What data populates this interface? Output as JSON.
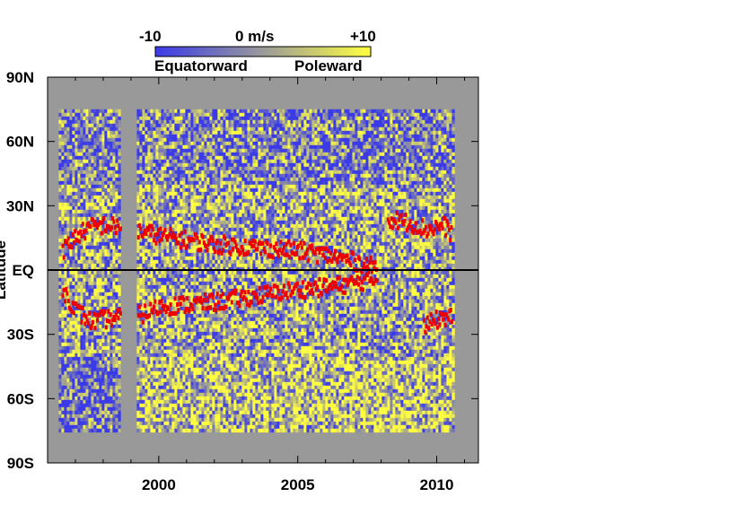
{
  "chart_data": {
    "type": "heatmap",
    "title": "",
    "ylabel": "Latitude",
    "xlabel": "",
    "x_ticks": [
      "2000",
      "2005",
      "2010"
    ],
    "x_tick_values": [
      2000,
      2005,
      2010
    ],
    "xlim": [
      1996,
      2011.5
    ],
    "y_ticks": [
      "90N",
      "60N",
      "30N",
      "EQ",
      "30S",
      "60S",
      "90S"
    ],
    "y_tick_values": [
      90,
      60,
      30,
      0,
      -30,
      -60,
      -90
    ],
    "ylim": [
      -90,
      90
    ],
    "data_lat_range": [
      -75,
      75
    ],
    "colorbar": {
      "min_label": "-10",
      "mid_label": "0 m/s",
      "max_label": "+10",
      "low_text": "Equatorward",
      "high_text": "Poleward",
      "range": [
        -10,
        10
      ],
      "colors": [
        "#3a3ae8",
        "#9a9a9a",
        "#ffff40"
      ]
    },
    "no_data_color": "#999999",
    "data_gaps_years": [
      [
        1998.6,
        1999.2
      ]
    ],
    "data_year_range": [
      1996.4,
      2010.6
    ],
    "equator_line": true,
    "red_tracks": {
      "color": "#ee0000",
      "north": {
        "years": [
          1996.5,
          1997.0,
          1997.5,
          1998.0,
          1998.5,
          1999.3,
          2000.0,
          2001.0,
          2002.0,
          2003.0,
          2004.0,
          2005.0,
          2006.0,
          2007.0,
          2007.8
        ],
        "lat": [
          10,
          17,
          21,
          22,
          21,
          19,
          17,
          15,
          13,
          12,
          11,
          10,
          8,
          5,
          2
        ]
      },
      "north_late": {
        "years": [
          2008.2,
          2009.0,
          2009.6,
          2010.2,
          2010.5
        ],
        "lat": [
          25,
          23,
          20,
          22,
          18
        ]
      },
      "south": {
        "years": [
          1996.5,
          1997.0,
          1997.5,
          1998.0,
          1998.5,
          1999.3,
          2000.0,
          2001.0,
          2002.0,
          2003.0,
          2004.0,
          2005.0,
          2006.0,
          2007.0,
          2007.8
        ],
        "lat": [
          -8,
          -18,
          -23,
          -22,
          -21,
          -20,
          -16,
          -15,
          -14,
          -12,
          -10,
          -8,
          -7,
          -5,
          -3
        ]
      },
      "south_late": {
        "years": [
          2009.5,
          2010.0,
          2010.5
        ],
        "lat": [
          -25,
          -22,
          -20
        ]
      }
    }
  }
}
